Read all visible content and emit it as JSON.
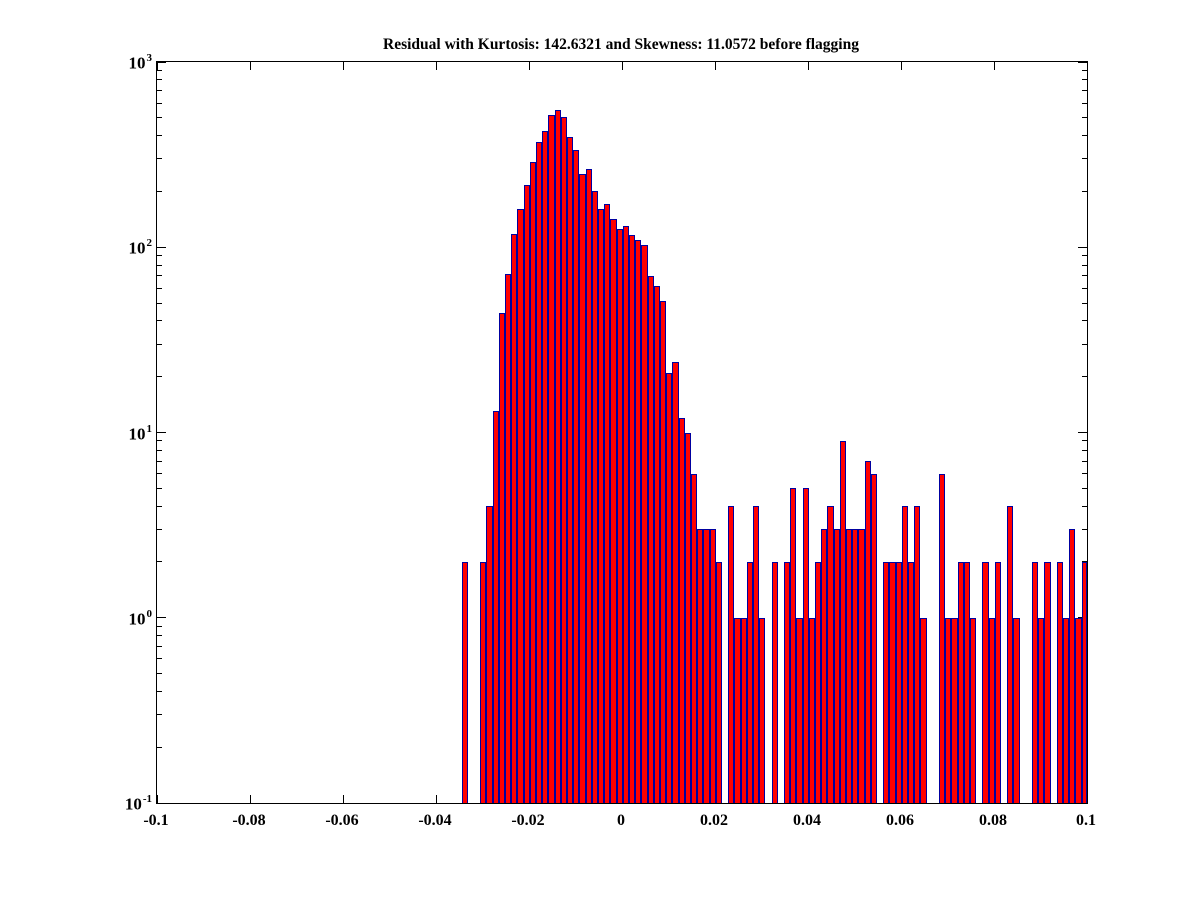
{
  "figure": {
    "background": "#ffffff",
    "title": "Residual with Kurtosis: 142.6321 and Skewness: 11.0572 before flagging"
  },
  "chart_data": {
    "type": "bar",
    "subtype": "histogram",
    "title": "Residual with Kurtosis: 142.6321 and Skewness: 11.0572 before flagging",
    "xlabel": "",
    "ylabel": "",
    "grid": false,
    "legend": null,
    "x_axis": {
      "scale": "linear",
      "min": -0.1,
      "max": 0.1,
      "ticks": [
        {
          "value": -0.1,
          "label": "-0.1"
        },
        {
          "value": -0.08,
          "label": "-0.08"
        },
        {
          "value": -0.06,
          "label": "-0.06"
        },
        {
          "value": -0.04,
          "label": "-0.04"
        },
        {
          "value": -0.02,
          "label": "-0.02"
        },
        {
          "value": 0,
          "label": "0"
        },
        {
          "value": 0.02,
          "label": "0.02"
        },
        {
          "value": 0.04,
          "label": "0.04"
        },
        {
          "value": 0.06,
          "label": "0.06"
        },
        {
          "value": 0.08,
          "label": "0.08"
        },
        {
          "value": 0.1,
          "label": "0.1"
        }
      ]
    },
    "y_axis": {
      "scale": "log10",
      "min_exp": -1,
      "max_exp": 3,
      "major_ticks": [
        {
          "exp": "3",
          "base": "10"
        },
        {
          "exp": "2",
          "base": "10"
        },
        {
          "exp": "1",
          "base": "10"
        },
        {
          "exp": "0",
          "base": "10"
        },
        {
          "exp": "-1",
          "base": "10"
        }
      ],
      "minor_ticks_per_decade": [
        2,
        3,
        4,
        5,
        6,
        7,
        8,
        9
      ]
    },
    "bins": {
      "first_left_edge": -0.0345,
      "width": 0.0013333,
      "count_of_bins": 101
    },
    "counts": [
      2,
      0,
      0,
      2,
      4,
      13,
      44,
      72,
      118,
      161,
      218,
      289,
      368,
      424,
      519,
      549,
      504,
      394,
      333,
      249,
      265,
      202,
      160,
      171,
      142,
      125,
      130,
      117,
      110,
      103,
      70,
      62,
      51,
      21,
      24,
      12,
      10,
      6,
      3,
      3,
      3,
      2,
      0,
      4,
      1,
      1,
      2,
      4,
      1,
      0,
      2,
      0,
      2,
      5,
      1,
      5,
      1,
      2,
      3,
      4,
      3,
      9,
      3,
      3,
      3,
      7,
      6,
      0,
      2,
      2,
      2,
      4,
      2,
      4,
      1,
      0,
      0,
      6,
      1,
      1,
      2,
      2,
      1,
      0,
      2,
      1,
      2,
      0,
      4,
      1,
      0,
      0,
      2,
      1,
      2,
      0,
      2,
      1,
      3,
      1,
      2
    ],
    "colors": {
      "bar_fill": "#ff0000",
      "bar_edge": "#0000a0",
      "axis": "#000000",
      "text": "#000000",
      "background": "#ffffff"
    }
  }
}
